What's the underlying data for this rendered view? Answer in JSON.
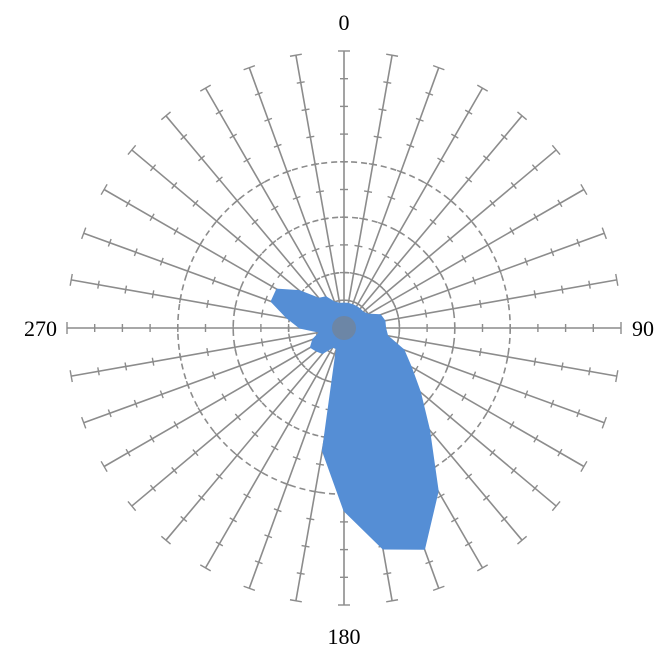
{
  "chart_data": {
    "type": "radar-area",
    "angle_unit": "degrees",
    "direction": "clockwise",
    "zero_at": "top",
    "spoke_step_deg": 10,
    "radial_max": 10,
    "radial_tick_step": 1,
    "ring_values": [
      2,
      4,
      6
    ],
    "grid": true,
    "angle_labels": [
      {
        "angle": 0,
        "text": "0"
      },
      {
        "angle": 90,
        "text": "90"
      },
      {
        "angle": 180,
        "text": "180"
      },
      {
        "angle": 270,
        "text": "270"
      }
    ],
    "series": [
      {
        "color": "#558ed5",
        "values": [
          {
            "angle": 0,
            "r": 0.9
          },
          {
            "angle": 10,
            "r": 0.9
          },
          {
            "angle": 20,
            "r": 0.9
          },
          {
            "angle": 30,
            "r": 0.9
          },
          {
            "angle": 40,
            "r": 0.9
          },
          {
            "angle": 50,
            "r": 0.9
          },
          {
            "angle": 60,
            "r": 1.0
          },
          {
            "angle": 70,
            "r": 1.4
          },
          {
            "angle": 80,
            "r": 1.5
          },
          {
            "angle": 90,
            "r": 1.5
          },
          {
            "angle": 100,
            "r": 1.6
          },
          {
            "angle": 110,
            "r": 2.3
          },
          {
            "angle": 120,
            "r": 2.8
          },
          {
            "angle": 130,
            "r": 3.6
          },
          {
            "angle": 140,
            "r": 4.8
          },
          {
            "angle": 150,
            "r": 6.8
          },
          {
            "angle": 160,
            "r": 8.5
          },
          {
            "angle": 170,
            "r": 8.1
          },
          {
            "angle": 180,
            "r": 6.6
          },
          {
            "angle": 190,
            "r": 4.5
          },
          {
            "angle": 200,
            "r": 0.8
          },
          {
            "angle": 210,
            "r": 0.8
          },
          {
            "angle": 220,
            "r": 1.2
          },
          {
            "angle": 230,
            "r": 1.3
          },
          {
            "angle": 240,
            "r": 1.4
          },
          {
            "angle": 250,
            "r": 1.2
          },
          {
            "angle": 260,
            "r": 0.9
          },
          {
            "angle": 270,
            "r": 1.6
          },
          {
            "angle": 280,
            "r": 2.1
          },
          {
            "angle": 290,
            "r": 2.8
          },
          {
            "angle": 300,
            "r": 2.8
          },
          {
            "angle": 310,
            "r": 2.1
          },
          {
            "angle": 320,
            "r": 1.4
          },
          {
            "angle": 330,
            "r": 1.3
          },
          {
            "angle": 340,
            "r": 1.0
          },
          {
            "angle": 350,
            "r": 0.9
          }
        ]
      }
    ],
    "colors": {
      "grid": "#8c8c8c",
      "center_fill": "#808080"
    }
  }
}
